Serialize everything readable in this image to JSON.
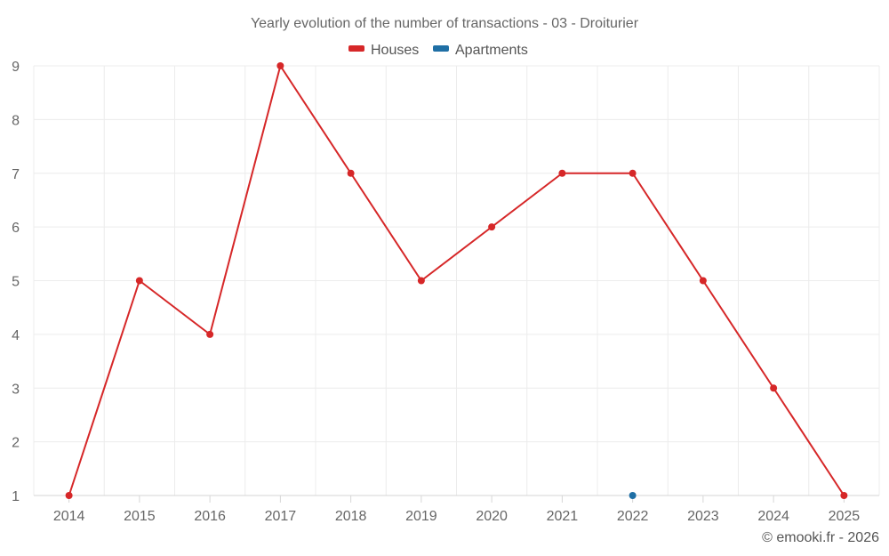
{
  "chart_data": {
    "type": "line",
    "title": "Yearly evolution of the number of transactions - 03 - Droiturier",
    "xlabel": "",
    "ylabel": "",
    "categories": [
      "2014",
      "2015",
      "2016",
      "2017",
      "2018",
      "2019",
      "2020",
      "2021",
      "2022",
      "2023",
      "2024",
      "2025"
    ],
    "ylim": [
      1,
      9
    ],
    "yticks": [
      1,
      2,
      3,
      4,
      5,
      6,
      7,
      8,
      9
    ],
    "grid": true,
    "legend_position": "top-center",
    "series": [
      {
        "name": "Houses",
        "color": "#d62728",
        "values": [
          1,
          5,
          4,
          9,
          7,
          5,
          6,
          7,
          7,
          5,
          3,
          1
        ]
      },
      {
        "name": "Apartments",
        "color": "#1f6fa5",
        "values": [
          null,
          null,
          null,
          null,
          null,
          null,
          null,
          null,
          1,
          null,
          null,
          null
        ]
      }
    ],
    "credit": "© emooki.fr - 2026"
  }
}
